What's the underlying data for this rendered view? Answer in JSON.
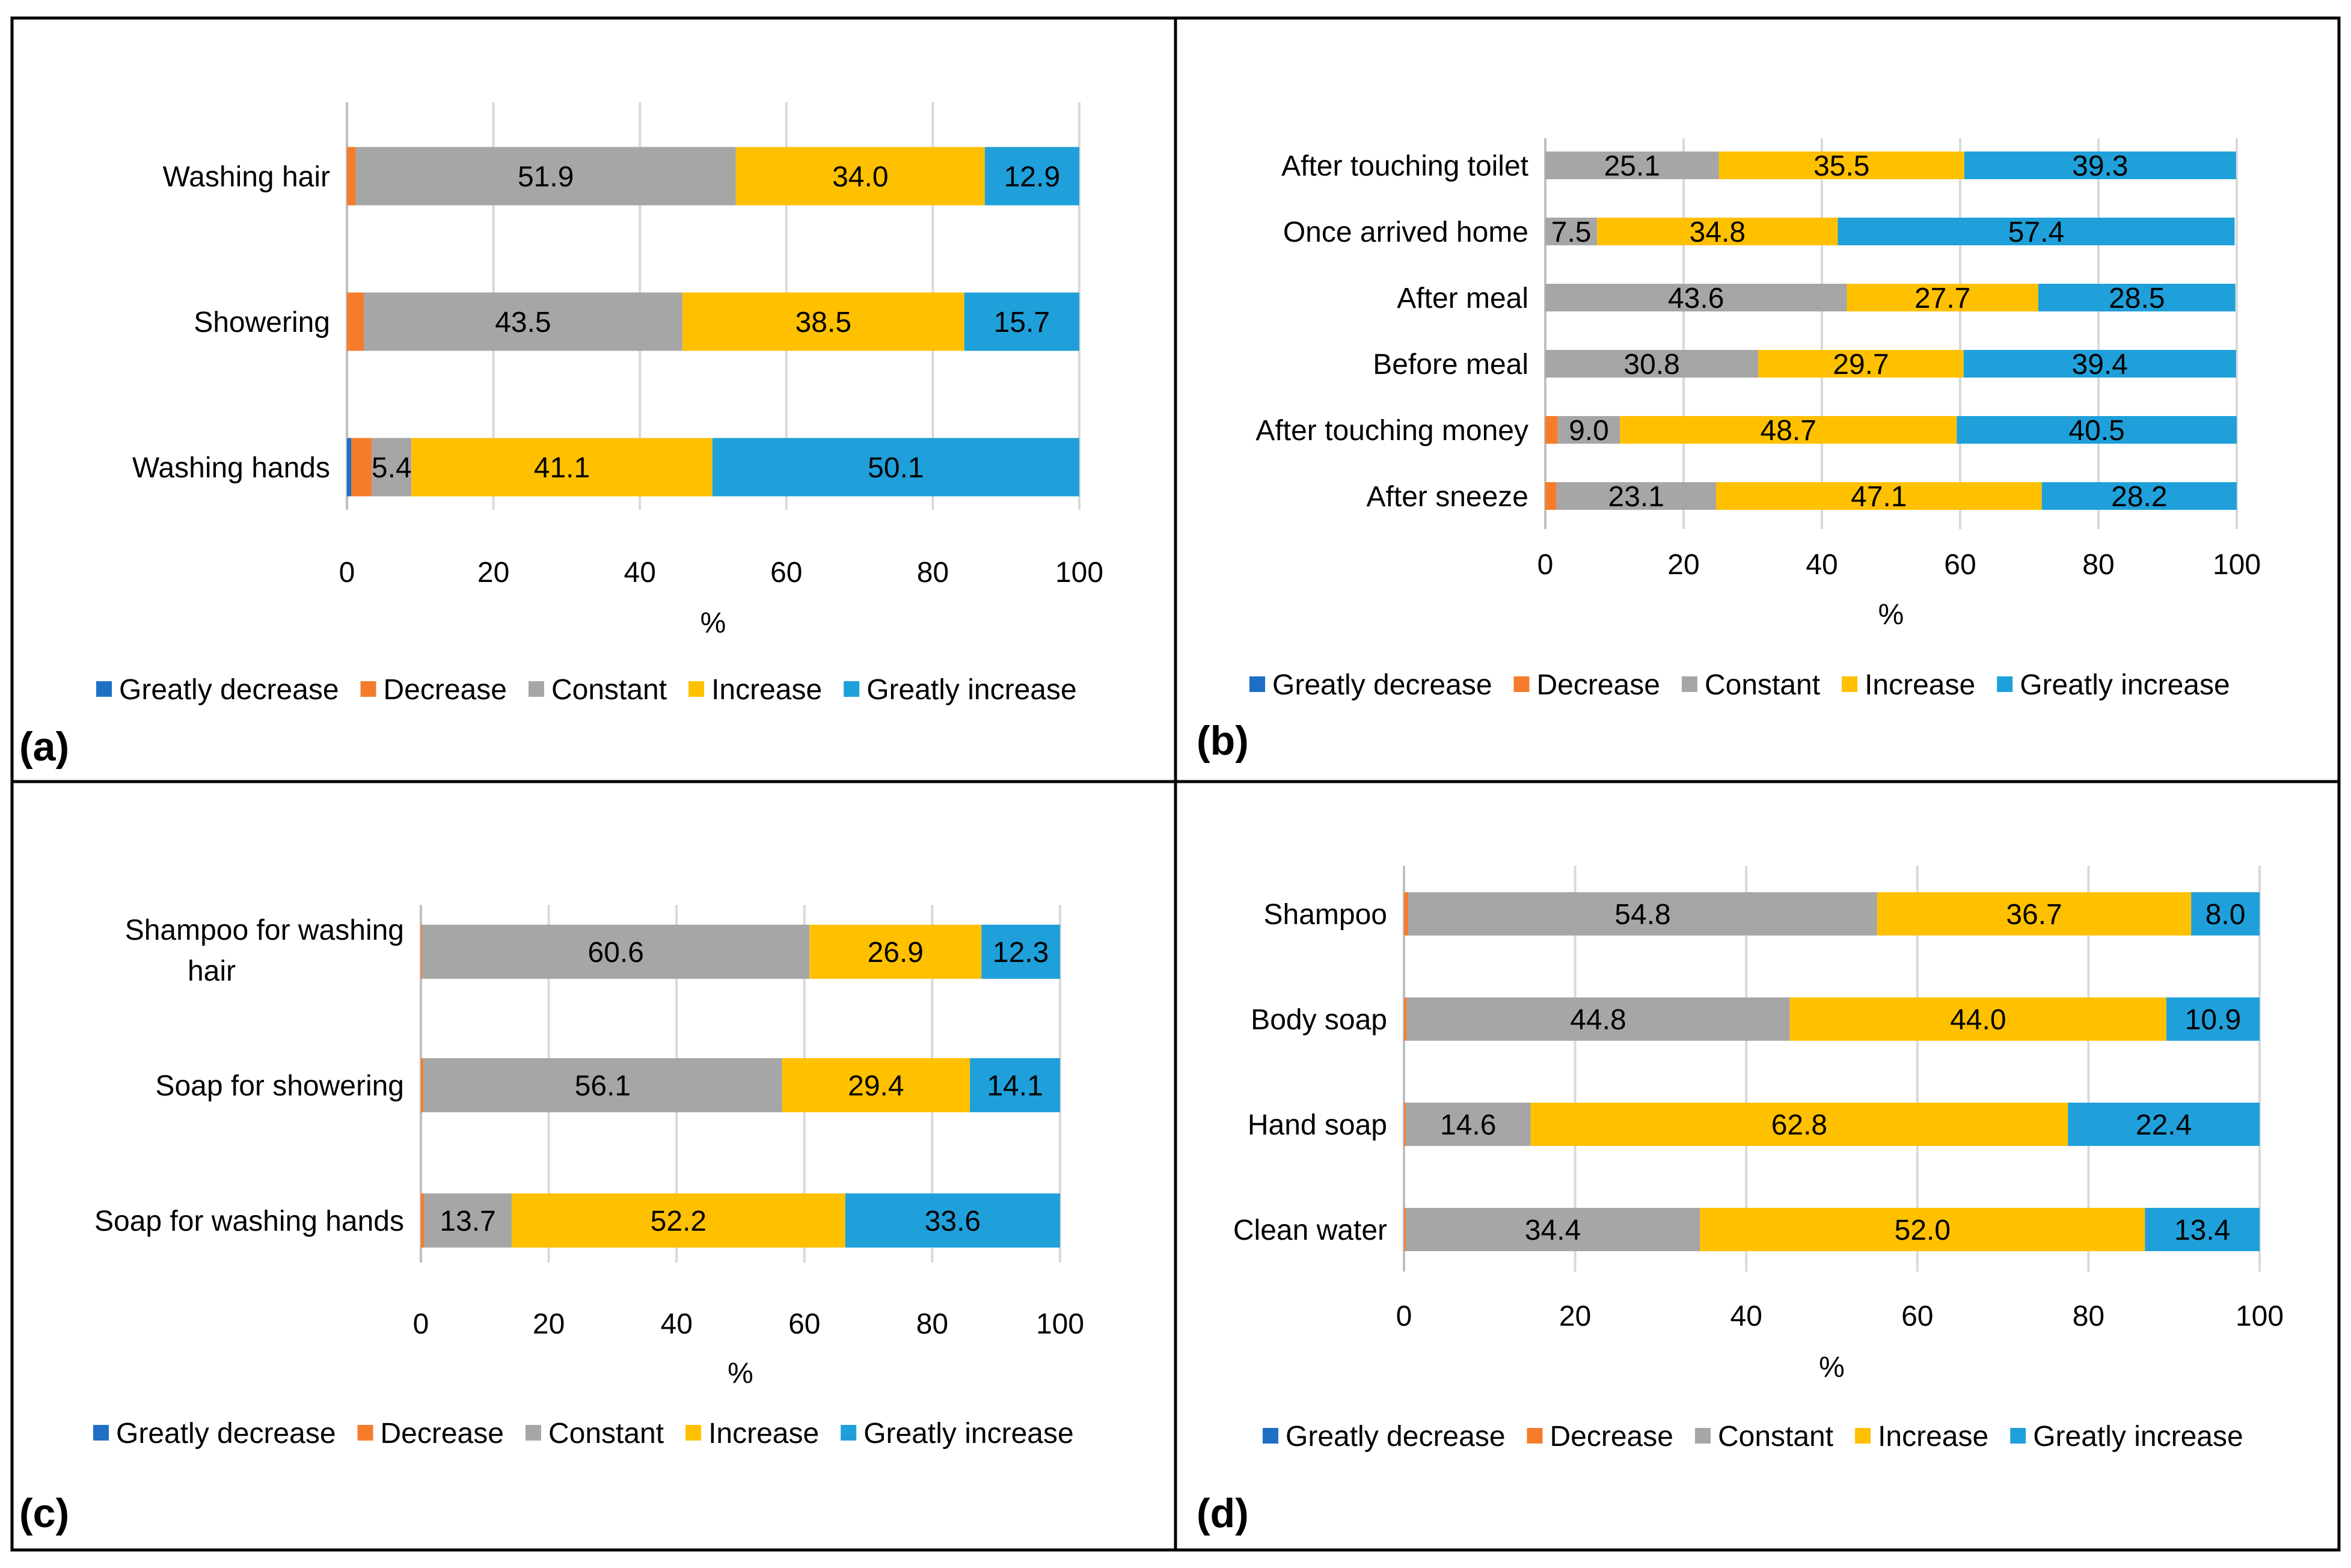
{
  "colors": {
    "greatly_decrease": "#1F6FC5",
    "decrease": "#F57C2B",
    "constant": "#A6A6A6",
    "increase": "#FFC000",
    "greatly_increase": "#1FA0DA",
    "grid": "#D9D9D9",
    "frame": "#000000",
    "text": "#000000"
  },
  "chart_data": [
    {
      "panel_label": "(a)",
      "type": "bar",
      "orientation": "horizontal",
      "stacked": true,
      "xlabel": "%",
      "xlim": [
        0,
        100
      ],
      "xticks": [
        "0",
        "20",
        "40",
        "60",
        "80",
        "100"
      ],
      "categories": [
        "Washing hair",
        "Showering",
        "Washing hands"
      ],
      "series": [
        {
          "name": "Greatly decrease",
          "color_key": "greatly_decrease",
          "values": [
            0,
            0,
            0.6
          ],
          "labels": [
            "",
            "",
            ""
          ]
        },
        {
          "name": "Decrease",
          "color_key": "decrease",
          "values": [
            1.2,
            2.3,
            2.8
          ],
          "labels": [
            "",
            "",
            ""
          ]
        },
        {
          "name": "Constant",
          "color_key": "constant",
          "values": [
            51.9,
            43.5,
            5.4
          ],
          "labels": [
            "51.9",
            "43.5",
            "5.4"
          ]
        },
        {
          "name": "Increase",
          "color_key": "increase",
          "values": [
            34.0,
            38.5,
            41.1
          ],
          "labels": [
            "34.0",
            "38.5",
            "41.1"
          ]
        },
        {
          "name": "Greatly increase",
          "color_key": "greatly_increase",
          "values": [
            12.9,
            15.7,
            50.1
          ],
          "labels": [
            "12.9",
            "15.7",
            "50.1"
          ]
        }
      ],
      "legend": [
        "Greatly decrease",
        "Decrease",
        "Constant",
        "Increase",
        "Greatly increase"
      ],
      "legend_position": "bottom"
    },
    {
      "panel_label": "(b)",
      "type": "bar",
      "orientation": "horizontal",
      "stacked": true,
      "xlabel": "%",
      "xlim": [
        0,
        100
      ],
      "xticks": [
        "0",
        "20",
        "40",
        "60",
        "80",
        "100"
      ],
      "categories": [
        "After touching toilet",
        "Once arrived home",
        "After meal",
        "Before meal",
        "After touching money",
        "After sneeze"
      ],
      "series": [
        {
          "name": "Greatly decrease",
          "color_key": "greatly_decrease",
          "values": [
            0,
            0,
            0,
            0,
            0,
            0
          ],
          "labels": [
            "",
            "",
            "",
            "",
            "",
            ""
          ]
        },
        {
          "name": "Decrease",
          "color_key": "decrease",
          "values": [
            0,
            0,
            0,
            0,
            1.8,
            1.6
          ],
          "labels": [
            "",
            "",
            "",
            "",
            "",
            ""
          ]
        },
        {
          "name": "Constant",
          "color_key": "constant",
          "values": [
            25.1,
            7.5,
            43.6,
            30.8,
            9.0,
            23.1
          ],
          "labels": [
            "25.1",
            "7.5",
            "43.6",
            "30.8",
            "9.0",
            "23.1"
          ]
        },
        {
          "name": "Increase",
          "color_key": "increase",
          "values": [
            35.5,
            34.8,
            27.7,
            29.7,
            48.7,
            47.1
          ],
          "labels": [
            "35.5",
            "34.8",
            "27.7",
            "29.7",
            "48.7",
            "47.1"
          ]
        },
        {
          "name": "Greatly increase",
          "color_key": "greatly_increase",
          "values": [
            39.3,
            57.4,
            28.5,
            39.4,
            40.5,
            28.2
          ],
          "labels": [
            "39.3",
            "57.4",
            "28.5",
            "39.4",
            "40.5",
            "28.2"
          ]
        }
      ],
      "legend": [
        "Greatly decrease",
        "Decrease",
        "Constant",
        "Increase",
        "Greatly increase"
      ],
      "legend_position": "bottom"
    },
    {
      "panel_label": "(c)",
      "type": "bar",
      "orientation": "horizontal",
      "stacked": true,
      "xlabel": "%",
      "xlim": [
        0,
        100
      ],
      "xticks": [
        "0",
        "20",
        "40",
        "60",
        "80",
        "100"
      ],
      "categories": [
        [
          "Shampoo for washing",
          "hair"
        ],
        [
          "Soap for showering"
        ],
        [
          "Soap for washing hands"
        ]
      ],
      "series": [
        {
          "name": "Greatly decrease",
          "color_key": "greatly_decrease",
          "values": [
            0,
            0,
            0
          ],
          "labels": [
            "",
            "",
            ""
          ]
        },
        {
          "name": "Decrease",
          "color_key": "decrease",
          "values": [
            0.2,
            0.4,
            0.5
          ],
          "labels": [
            "",
            "",
            ""
          ]
        },
        {
          "name": "Constant",
          "color_key": "constant",
          "values": [
            60.6,
            56.1,
            13.7
          ],
          "labels": [
            "60.6",
            "56.1",
            "13.7"
          ]
        },
        {
          "name": "Increase",
          "color_key": "increase",
          "values": [
            26.9,
            29.4,
            52.2
          ],
          "labels": [
            "26.9",
            "29.4",
            "52.2"
          ]
        },
        {
          "name": "Greatly increase",
          "color_key": "greatly_increase",
          "values": [
            12.3,
            14.1,
            33.6
          ],
          "labels": [
            "12.3",
            "14.1",
            "33.6"
          ]
        }
      ],
      "legend": [
        "Greatly decrease",
        "Decrease",
        "Constant",
        "Increase",
        "Greatly increase"
      ],
      "legend_position": "bottom"
    },
    {
      "panel_label": "(d)",
      "type": "bar",
      "orientation": "horizontal",
      "stacked": true,
      "xlabel": "%",
      "xlim": [
        0,
        100
      ],
      "xticks": [
        "0",
        "20",
        "40",
        "60",
        "80",
        "100"
      ],
      "categories": [
        "Shampoo",
        "Body soap",
        "Hand soap",
        "Clean water"
      ],
      "series": [
        {
          "name": "Greatly decrease",
          "color_key": "greatly_decrease",
          "values": [
            0,
            0,
            0,
            0
          ],
          "labels": [
            "",
            "",
            "",
            ""
          ]
        },
        {
          "name": "Decrease",
          "color_key": "decrease",
          "values": [
            0.5,
            0.3,
            0.2,
            0.2
          ],
          "labels": [
            "",
            "",
            "",
            ""
          ]
        },
        {
          "name": "Constant",
          "color_key": "constant",
          "values": [
            54.8,
            44.8,
            14.6,
            34.4
          ],
          "labels": [
            "54.8",
            "44.8",
            "14.6",
            "34.4"
          ]
        },
        {
          "name": "Increase",
          "color_key": "increase",
          "values": [
            36.7,
            44.0,
            62.8,
            52.0
          ],
          "labels": [
            "36.7",
            "44.0",
            "62.8",
            "52.0"
          ]
        },
        {
          "name": "Greatly increase",
          "color_key": "greatly_increase",
          "values": [
            8.0,
            10.9,
            22.4,
            13.4
          ],
          "labels": [
            "8.0",
            "10.9",
            "22.4",
            "13.4"
          ]
        }
      ],
      "legend": [
        "Greatly decrease",
        "Decrease",
        "Constant",
        "Increase",
        "Greatly increase"
      ],
      "legend_position": "bottom"
    }
  ]
}
